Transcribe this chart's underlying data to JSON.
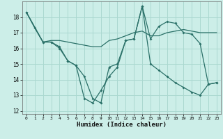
{
  "xlabel": "Humidex (Indice chaleur)",
  "bg_color": "#cceee8",
  "grid_color": "#aad8d0",
  "line_color": "#2a7068",
  "xlim": [
    -0.5,
    23.5
  ],
  "ylim": [
    11.8,
    19.0
  ],
  "xticks": [
    0,
    1,
    2,
    3,
    4,
    5,
    6,
    7,
    8,
    9,
    10,
    11,
    12,
    13,
    14,
    15,
    16,
    17,
    18,
    19,
    20,
    21,
    22,
    23
  ],
  "yticks": [
    12,
    13,
    14,
    15,
    16,
    17,
    18
  ],
  "line1_x": [
    0,
    1,
    2,
    3,
    4,
    5,
    6,
    7,
    8,
    9,
    10,
    11,
    12,
    13,
    14,
    15,
    16,
    17,
    18,
    19,
    20,
    21,
    22,
    23
  ],
  "line1_y": [
    18.3,
    17.3,
    16.4,
    16.4,
    16.0,
    15.2,
    14.9,
    12.8,
    12.5,
    13.3,
    14.2,
    14.8,
    16.5,
    16.6,
    18.7,
    16.6,
    17.4,
    17.7,
    17.6,
    17.0,
    16.9,
    16.3,
    13.7,
    13.8
  ],
  "line2_x": [
    0,
    2,
    3,
    4,
    5,
    6,
    7,
    8,
    9,
    10,
    11,
    12,
    13,
    14,
    15,
    16,
    17,
    18,
    19,
    20,
    21,
    22,
    23
  ],
  "line2_y": [
    18.3,
    16.4,
    16.5,
    16.5,
    16.4,
    16.3,
    16.2,
    16.1,
    16.1,
    16.5,
    16.6,
    16.8,
    17.0,
    17.1,
    16.8,
    16.8,
    17.0,
    17.1,
    17.2,
    17.1,
    17.0,
    17.0,
    17.0
  ],
  "line3_x": [
    0,
    2,
    3,
    4,
    5,
    6,
    7,
    8,
    9,
    10,
    11,
    12,
    13,
    14,
    15,
    16,
    17,
    18,
    19,
    20,
    21,
    22,
    23
  ],
  "line3_y": [
    18.3,
    16.4,
    16.4,
    16.1,
    15.2,
    14.9,
    14.2,
    12.8,
    12.5,
    14.8,
    15.0,
    16.5,
    16.6,
    18.7,
    15.0,
    14.6,
    14.2,
    13.8,
    13.5,
    13.2,
    13.0,
    13.7,
    13.8
  ]
}
